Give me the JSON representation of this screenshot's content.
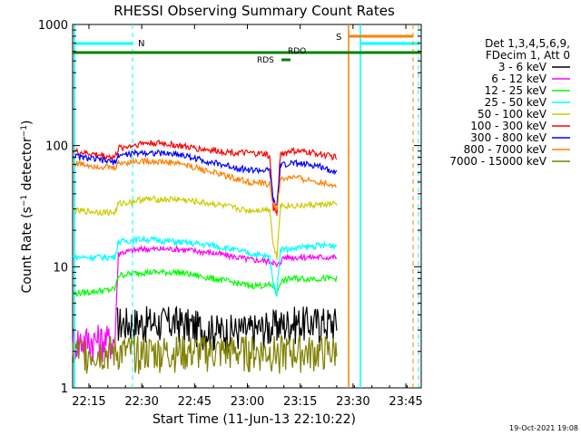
{
  "chart_data": {
    "type": "line",
    "title": "RHESSI Observing Summary Count Rates",
    "xlabel": "Start Time (11-Jun-13 22:10:22)",
    "ylabel": "Count Rate (s⁻¹ detector⁻¹)",
    "ylabel_main": "Count Rate (s",
    "ylabel_sup1": "−1",
    "ylabel_mid": " detector",
    "ylabel_sup2": "−1",
    "ylabel_end": ")",
    "y_scale": "log",
    "ylim": [
      1,
      1000
    ],
    "xlim_minutes": [
      0,
      99
    ],
    "x_tick_labels": [
      "22:15",
      "22:30",
      "22:45",
      "23:00",
      "23:15",
      "23:30",
      "23:45"
    ],
    "x_tick_minutes": [
      4.63,
      19.63,
      34.63,
      49.63,
      64.63,
      79.63,
      94.63
    ],
    "y_tick_labels": [
      "1",
      "10",
      "100",
      "1000"
    ],
    "y_tick_values": [
      1,
      10,
      100,
      1000
    ],
    "legend_header": [
      "Det 1,3,4,5,6,9,",
      "FDecim 1, Att 0"
    ],
    "legend_position": "top-right",
    "series": [
      {
        "name": "3 - 6 keV",
        "color": "#000000",
        "points": [
          [
            12.5,
            3.5
          ],
          [
            30,
            3.5
          ],
          [
            40,
            3
          ],
          [
            50,
            3
          ],
          [
            58,
            3.3
          ],
          [
            62,
            3.5
          ],
          [
            70,
            3.5
          ],
          [
            75,
            3.5
          ]
        ]
      },
      {
        "name": "6 - 12 keV",
        "color": "#ff00ff",
        "points": [
          [
            0,
            2.5
          ],
          [
            12,
            2.5
          ],
          [
            13,
            13
          ],
          [
            20,
            14
          ],
          [
            30,
            14
          ],
          [
            40,
            13
          ],
          [
            50,
            11.5
          ],
          [
            57,
            11
          ],
          [
            58,
            10
          ],
          [
            59,
            11
          ],
          [
            60,
            12
          ],
          [
            65,
            12
          ],
          [
            70,
            12
          ],
          [
            75,
            12
          ]
        ]
      },
      {
        "name": "12 - 25 keV",
        "color": "#00ff00",
        "points": [
          [
            0,
            6
          ],
          [
            12,
            6.5
          ],
          [
            13,
            8.5
          ],
          [
            20,
            9
          ],
          [
            30,
            9
          ],
          [
            40,
            8
          ],
          [
            50,
            7
          ],
          [
            57,
            7
          ],
          [
            58,
            6
          ],
          [
            59,
            7.5
          ],
          [
            62,
            8
          ],
          [
            68,
            8
          ],
          [
            75,
            8
          ]
        ]
      },
      {
        "name": "25 - 50 keV",
        "color": "#00ffff",
        "points": [
          [
            0,
            12
          ],
          [
            12,
            12
          ],
          [
            13,
            16
          ],
          [
            20,
            17
          ],
          [
            30,
            16
          ],
          [
            40,
            15
          ],
          [
            50,
            13
          ],
          [
            56,
            12
          ],
          [
            57,
            7
          ],
          [
            58,
            6
          ],
          [
            59,
            14
          ],
          [
            62,
            14
          ],
          [
            70,
            15
          ],
          [
            75,
            15
          ]
        ]
      },
      {
        "name": "50 - 100 keV",
        "color": "#cccc00",
        "points": [
          [
            0,
            29
          ],
          [
            12,
            28
          ],
          [
            13,
            33
          ],
          [
            20,
            36
          ],
          [
            30,
            36
          ],
          [
            40,
            33
          ],
          [
            50,
            29
          ],
          [
            56,
            30
          ],
          [
            57,
            15
          ],
          [
            58,
            12
          ],
          [
            59,
            32
          ],
          [
            65,
            32
          ],
          [
            75,
            33
          ]
        ]
      },
      {
        "name": "100 - 300 keV",
        "color": "#ff0000",
        "points": [
          [
            0,
            90
          ],
          [
            12,
            80
          ],
          [
            13,
            95
          ],
          [
            20,
            105
          ],
          [
            25,
            105
          ],
          [
            35,
            95
          ],
          [
            45,
            88
          ],
          [
            55,
            85
          ],
          [
            56,
            80
          ],
          [
            57,
            30
          ],
          [
            58,
            28
          ],
          [
            59,
            85
          ],
          [
            62,
            90
          ],
          [
            68,
            88
          ],
          [
            75,
            80
          ]
        ]
      },
      {
        "name": "300 - 800 keV",
        "color": "#0000ff",
        "points": [
          [
            0,
            82
          ],
          [
            12,
            73
          ],
          [
            13,
            83
          ],
          [
            20,
            88
          ],
          [
            30,
            85
          ],
          [
            40,
            72
          ],
          [
            50,
            63
          ],
          [
            56,
            62
          ],
          [
            57,
            35
          ],
          [
            58,
            32
          ],
          [
            59,
            68
          ],
          [
            62,
            72
          ],
          [
            70,
            68
          ],
          [
            75,
            60
          ]
        ]
      },
      {
        "name": "800 - 7000 keV",
        "color": "#ff8000",
        "points": [
          [
            0,
            72
          ],
          [
            12,
            65
          ],
          [
            13,
            72
          ],
          [
            20,
            75
          ],
          [
            30,
            72
          ],
          [
            40,
            60
          ],
          [
            50,
            50
          ],
          [
            56,
            48
          ],
          [
            57,
            33
          ],
          [
            58,
            30
          ],
          [
            59,
            52
          ],
          [
            62,
            55
          ],
          [
            70,
            50
          ],
          [
            75,
            47
          ]
        ]
      },
      {
        "name": "7000 - 15000 keV",
        "color": "#808000",
        "points": [
          [
            0,
            2
          ],
          [
            25,
            2
          ],
          [
            50,
            2
          ],
          [
            75,
            2
          ]
        ]
      }
    ],
    "annotations": [
      {
        "label": "N",
        "color": "#00ffff"
      },
      {
        "label": "S",
        "color": "#ff8000"
      },
      {
        "label": "RDO",
        "color": "#008000"
      },
      {
        "label": "RDS",
        "color": "#008000"
      }
    ],
    "timestamp": "19-Oct-2021 19:08"
  }
}
